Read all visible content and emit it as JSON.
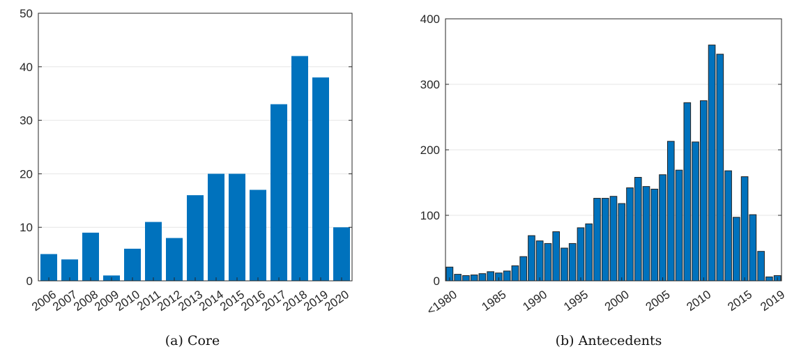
{
  "chart_data": [
    {
      "type": "bar",
      "caption": "(a) Core",
      "categories": [
        "2006",
        "2007",
        "2008",
        "2009",
        "2010",
        "2011",
        "2012",
        "2013",
        "2014",
        "2015",
        "2016",
        "2017",
        "2018",
        "2019",
        "2020"
      ],
      "values": [
        5,
        4,
        9,
        1,
        6,
        11,
        8,
        16,
        20,
        20,
        17,
        33,
        42,
        38,
        10
      ],
      "ylim": [
        0,
        50
      ],
      "yticks": [
        0,
        10,
        20,
        30,
        40,
        50
      ],
      "grid": true,
      "bar_color": "#0072BD"
    },
    {
      "type": "bar",
      "caption": "(b) Antecedents",
      "categories": [
        "<1980",
        "1980",
        "1981",
        "1982",
        "1983",
        "1984",
        "1985",
        "1986",
        "1987",
        "1988",
        "1989",
        "1990",
        "1991",
        "1992",
        "1993",
        "1994",
        "1995",
        "1996",
        "1997",
        "1998",
        "1999",
        "2000",
        "2001",
        "2002",
        "2003",
        "2004",
        "2005",
        "2006",
        "2007",
        "2008",
        "2009",
        "2010",
        "2011",
        "2012",
        "2013",
        "2014",
        "2015",
        "2016",
        "2017",
        "2018",
        "2019"
      ],
      "values": [
        21,
        10,
        8,
        9,
        11,
        14,
        12,
        15,
        23,
        37,
        69,
        61,
        57,
        75,
        50,
        57,
        81,
        87,
        126,
        126,
        129,
        118,
        142,
        158,
        144,
        140,
        162,
        213,
        169,
        272,
        212,
        275,
        360,
        346,
        168,
        97,
        159,
        101,
        45,
        6,
        8
      ],
      "xtick_labels": [
        "<1980",
        "1985",
        "1990",
        "1995",
        "2000",
        "2005",
        "2010",
        "2015",
        "2019"
      ],
      "ylim": [
        0,
        400
      ],
      "yticks": [
        0,
        100,
        200,
        300,
        400
      ],
      "grid": true,
      "bar_color": "#0072BD"
    }
  ]
}
